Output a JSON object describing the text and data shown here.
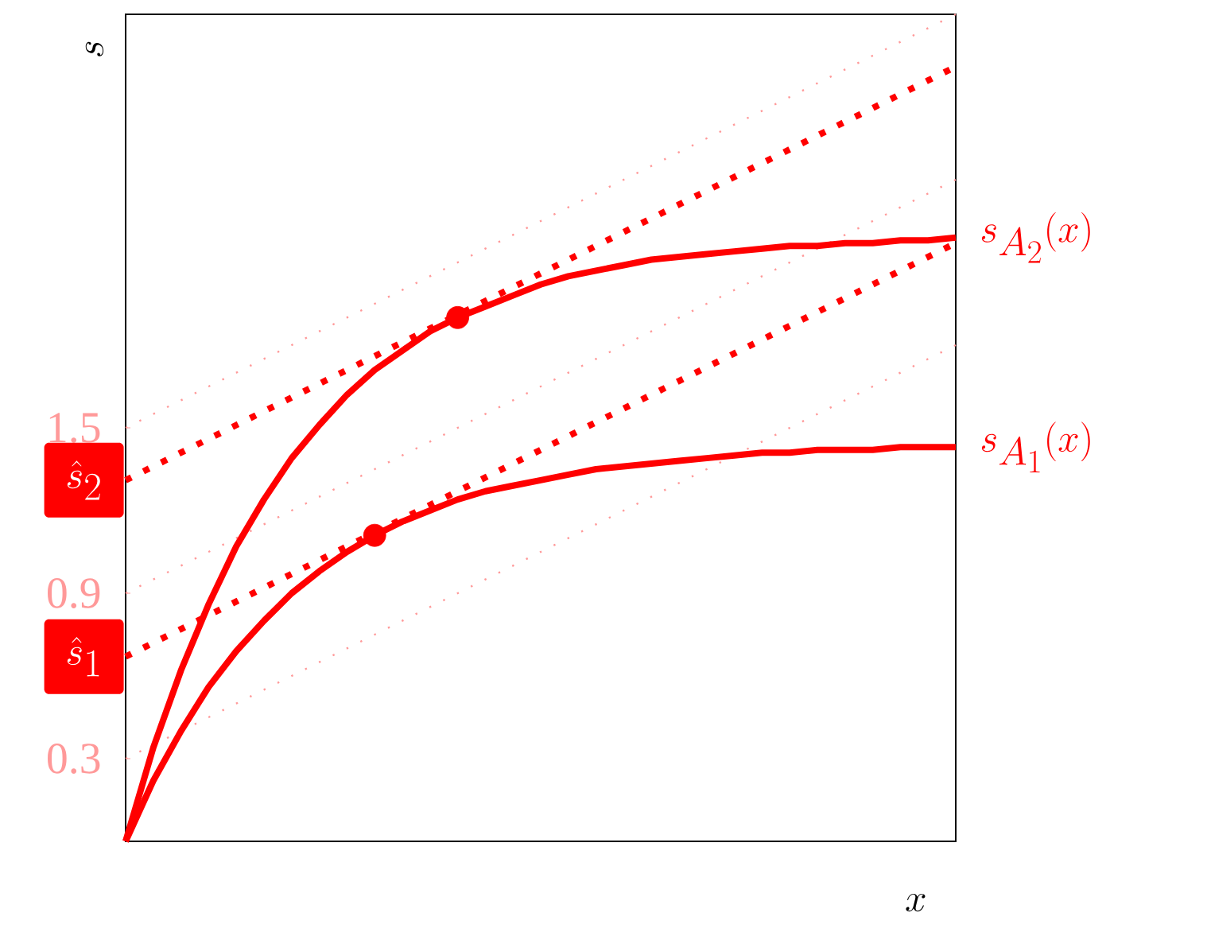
{
  "chart_data": {
    "type": "line",
    "xlabel": "x",
    "ylabel": "s",
    "ylim": [
      0,
      3
    ],
    "yticks": [
      0.3,
      0.9,
      1.5
    ],
    "tick_labels": "y",
    "categories": [
      null,
      null,
      null,
      null,
      null,
      null,
      null,
      null,
      null,
      null,
      null,
      null,
      null,
      null,
      null,
      null,
      null,
      null,
      null,
      null,
      null,
      null,
      null,
      null,
      null,
      null,
      null,
      null,
      null,
      null,
      null
    ],
    "series": [
      {
        "color": "#ff9999",
        "line_style": "dotted",
        "values": [
          0.3,
          0.35,
          0.4,
          0.45,
          0.5,
          0.55,
          0.6,
          0.65,
          0.7,
          0.75,
          0.8,
          0.85,
          0.9,
          0.95,
          1.0,
          1.05,
          1.1,
          1.15,
          1.2,
          1.25,
          1.3,
          1.35,
          1.4,
          1.45,
          1.5,
          1.55,
          1.6,
          1.65,
          1.7,
          1.75,
          1.8
        ]
      },
      {
        "color": "#ff9999",
        "line_style": "dotted",
        "values": [
          0.9,
          0.95,
          1.0,
          1.05,
          1.1,
          1.15,
          1.2,
          1.25,
          1.3,
          1.35,
          1.4,
          1.45,
          1.5,
          1.55,
          1.6,
          1.65,
          1.7,
          1.75,
          1.8,
          1.85,
          1.9,
          1.95,
          2.0,
          2.05,
          2.1,
          2.15,
          2.2,
          2.25,
          2.3,
          2.35,
          2.4
        ]
      },
      {
        "color": "#ff9999",
        "line_style": "dotted",
        "values": [
          1.5,
          1.55,
          1.6,
          1.65,
          1.7,
          1.75,
          1.8,
          1.85,
          1.9,
          1.95,
          2.0,
          2.05,
          2.1,
          2.15,
          2.2,
          2.25,
          2.3,
          2.35,
          2.4,
          2.45,
          2.5,
          2.55,
          2.6,
          2.65,
          2.7,
          2.75,
          2.8,
          2.85,
          2.9,
          2.95,
          3.0
        ]
      },
      {
        "name": "\\hat{s}_1",
        "color": "#ff0000",
        "line_style": "dotted",
        "values": [
          0.67,
          0.72,
          0.77,
          0.82,
          0.87,
          0.92,
          0.97,
          1.02,
          1.07,
          1.12,
          1.17,
          1.22,
          1.27,
          1.32,
          1.37,
          1.42,
          1.47,
          1.52,
          1.57,
          1.62,
          1.67,
          1.72,
          1.77,
          1.82,
          1.87,
          1.92,
          1.97,
          2.02,
          2.07,
          2.12,
          2.17
        ]
      },
      {
        "name": "\\hat{s}_2",
        "color": "#ff0000",
        "line_style": "dotted",
        "values": [
          1.31,
          1.36,
          1.41,
          1.46,
          1.51,
          1.56,
          1.61,
          1.66,
          1.71,
          1.76,
          1.81,
          1.86,
          1.91,
          1.96,
          2.01,
          2.06,
          2.11,
          2.16,
          2.21,
          2.26,
          2.31,
          2.36,
          2.41,
          2.46,
          2.51,
          2.56,
          2.61,
          2.66,
          2.71,
          2.76,
          2.81
        ]
      },
      {
        "name": "s_{A_1}(x)",
        "color": "#ff0000",
        "line_style": "solid",
        "values": [
          0,
          0.22,
          0.4,
          0.56,
          0.69,
          0.8,
          0.9,
          0.98,
          1.05,
          1.11,
          1.16,
          1.2,
          1.24,
          1.27,
          1.29,
          1.31,
          1.33,
          1.35,
          1.36,
          1.37,
          1.38,
          1.39,
          1.4,
          1.41,
          1.41,
          1.42,
          1.42,
          1.42,
          1.43,
          1.43,
          1.43
        ]
      },
      {
        "name": "s_{A_2}(x)",
        "color": "#ff0000",
        "line_style": "solid",
        "values": [
          0,
          0.34,
          0.62,
          0.86,
          1.07,
          1.24,
          1.39,
          1.51,
          1.62,
          1.71,
          1.78,
          1.85,
          1.9,
          1.94,
          1.98,
          2.02,
          2.05,
          2.07,
          2.09,
          2.11,
          2.12,
          2.13,
          2.14,
          2.15,
          2.16,
          2.16,
          2.17,
          2.17,
          2.18,
          2.18,
          2.19
        ]
      },
      {
        "type": "scatter",
        "color": "#ff0000",
        "marker": "circle",
        "values": [
          null,
          null,
          null,
          null,
          null,
          null,
          null,
          null,
          null,
          1.11,
          null,
          null,
          1.9,
          null,
          null,
          null,
          null,
          null,
          null,
          null,
          null,
          null,
          null,
          null,
          null,
          null,
          null,
          null,
          null,
          null,
          null
        ]
      }
    ]
  }
}
